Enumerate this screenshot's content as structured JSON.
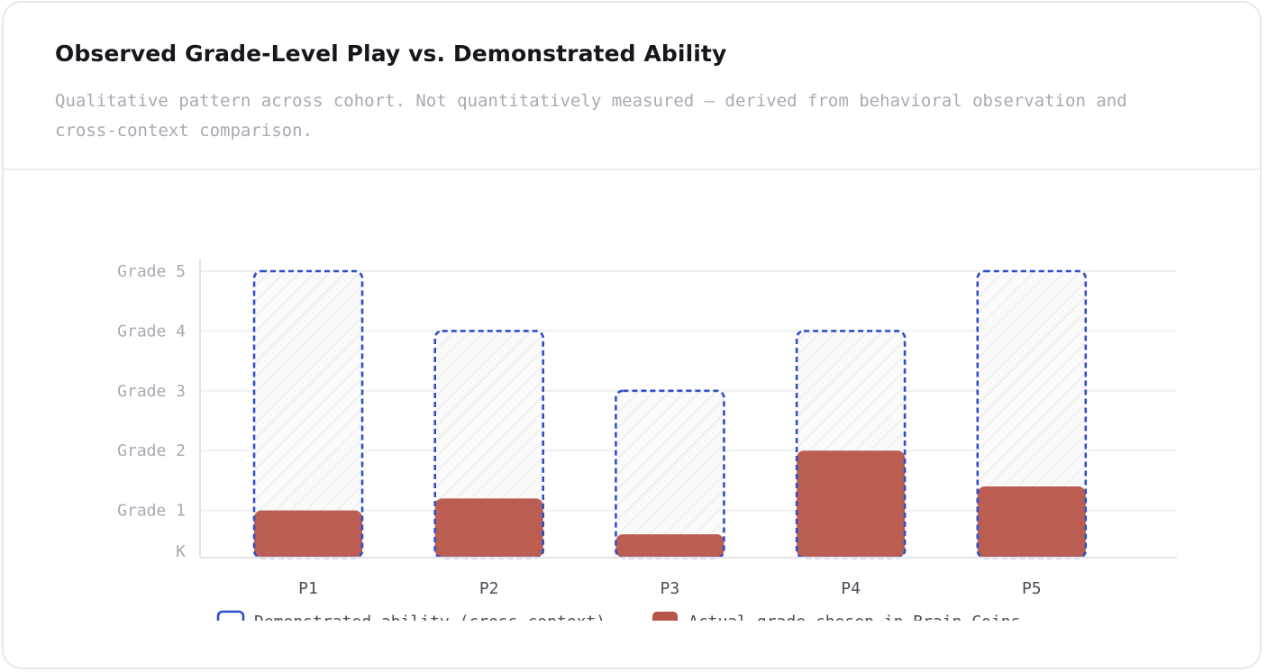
{
  "card": {
    "title": "Observed Grade-Level Play vs. Demonstrated Ability",
    "subtitle": "Qualitative pattern across cohort. Not quantitatively measured — derived from behavioral observation and cross-context comparison."
  },
  "chart_data": {
    "type": "bar",
    "categories": [
      "P1",
      "P2",
      "P3",
      "P4",
      "P5"
    ],
    "y_tick_labels": [
      "K",
      "Grade 1",
      "Grade 2",
      "Grade 3",
      "Grade 4",
      "Grade 5"
    ],
    "y_tick_values": [
      0.2,
      1,
      2,
      3,
      4,
      5
    ],
    "ylim": [
      0.2,
      5.2
    ],
    "series": [
      {
        "name": "Demonstrated ability (cross-context)",
        "values": [
          5,
          4,
          3,
          4,
          5
        ],
        "style": "dashed-outline-hatched",
        "color": "#2f4fc8"
      },
      {
        "name": "Actual grade chosen in Brain Coins",
        "values": [
          1,
          1.2,
          0.6,
          2,
          1.4
        ],
        "style": "filled",
        "color": "#b85449"
      }
    ],
    "grid": true,
    "legend_position": "bottom"
  }
}
